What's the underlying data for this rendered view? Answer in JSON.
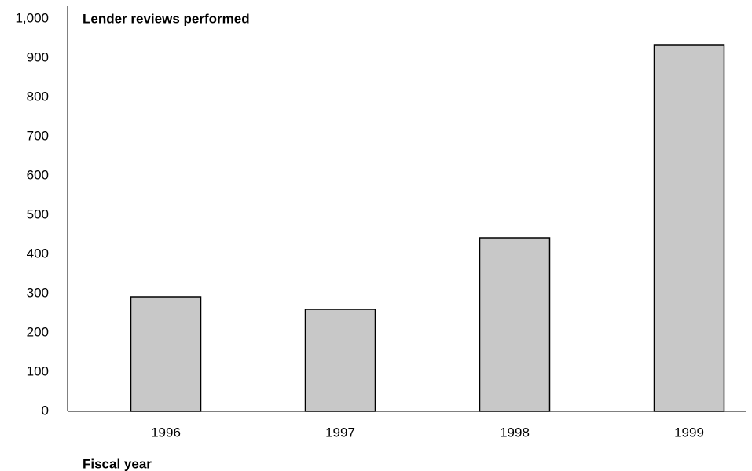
{
  "chart_data": {
    "type": "bar",
    "title": "Lender reviews performed",
    "x_label": "Fiscal year",
    "categories": [
      "1996",
      "1997",
      "1998",
      "1999"
    ],
    "values": [
      292,
      260,
      442,
      934
    ],
    "color": "#c8c8c8",
    "ylim": [
      0,
      1000
    ],
    "yticks": [
      0,
      100,
      200,
      300,
      400,
      500,
      600,
      700,
      800,
      900,
      {
        "value": 1000,
        "label": "1,000"
      }
    ],
    "grid": false
  }
}
